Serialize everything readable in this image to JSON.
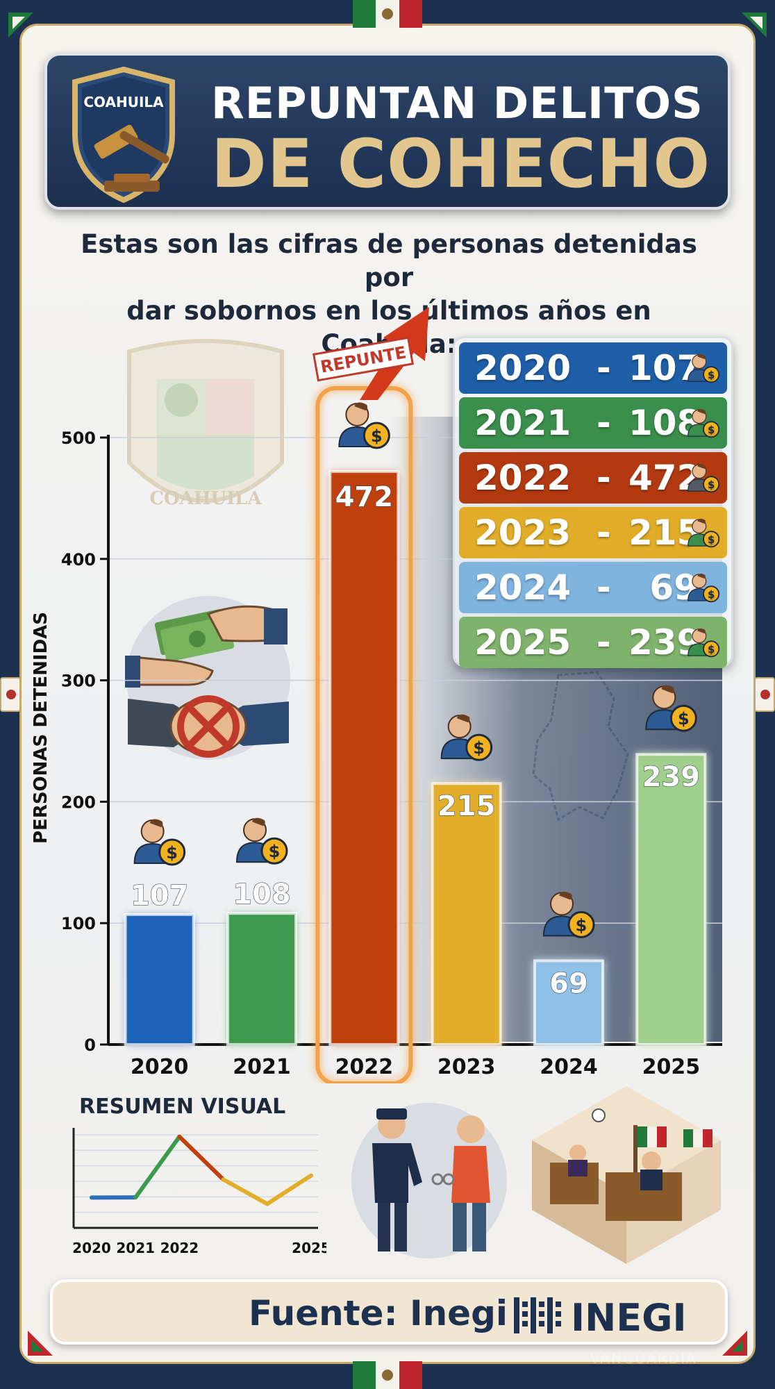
{
  "header": {
    "badge_label": "COAHUILA",
    "title_line1": "REPUNTAN DELITOS",
    "title_line2": "DE COHECHO"
  },
  "subtitle": {
    "line1": "Estas son las cifras de personas detenidas por",
    "line2": "dar sobornos en los últimos años en Coahuila:"
  },
  "emblem": {
    "text_top": "COAHUILA"
  },
  "highlight_label": "REPUNTE",
  "chart_data": [
    {
      "type": "bar",
      "ylabel": "PERSONAS DETENIDAS",
      "categories": [
        "2020",
        "2021",
        "2022",
        "2023",
        "2024",
        "2025"
      ],
      "values": [
        107,
        108,
        472,
        215,
        69,
        239
      ],
      "colors": [
        "#1c63b8",
        "#3c9a4e",
        "#c0400e",
        "#e2ae2a",
        "#8fc1e8",
        "#9fcf8a"
      ],
      "yticks": [
        0,
        100,
        200,
        300,
        400,
        500
      ],
      "ylim": [
        0,
        500
      ],
      "grid": true,
      "highlight": "2022"
    },
    {
      "type": "line",
      "title": "RESUMEN VISUAL",
      "x_tick_labels": [
        "2020",
        "2021",
        "2022",
        "2025"
      ],
      "x": [
        "2020",
        "2021",
        "2022",
        "2023",
        "2024",
        "2025"
      ],
      "values": [
        107,
        108,
        472,
        215,
        69,
        239
      ]
    }
  ],
  "legend": {
    "rows": [
      {
        "year": "2020",
        "value": "107",
        "color": "#1f5fa8"
      },
      {
        "year": "2021",
        "value": "108",
        "color": "#3b8f4c"
      },
      {
        "year": "2022",
        "value": "472",
        "color": "#b33a10"
      },
      {
        "year": "2023",
        "value": "215",
        "color": "#e1ac27"
      },
      {
        "year": "2024",
        "value": "69",
        "color": "#7fb4df"
      },
      {
        "year": "2025",
        "value": "239",
        "color": "#7fb36c"
      }
    ],
    "separator": "-"
  },
  "footer": {
    "source_label": "Fuente: Inegi",
    "logo_text": "INEGI"
  },
  "icons": {
    "badge": "gavel-shield-icon",
    "person": "person-coin-icon",
    "arrow": "trend-up-arrow-icon",
    "handshake": "no-bribe-handshake-icon",
    "arrest": "police-arrest-icon",
    "court": "courtroom-icon",
    "map": "coahuila-map-icon"
  },
  "watermark": "VANGUARDIA"
}
